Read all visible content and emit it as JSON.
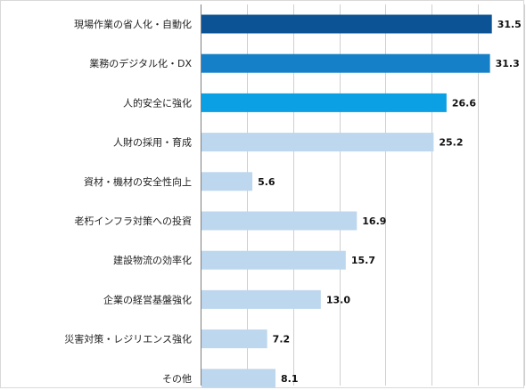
{
  "chart_data": {
    "type": "bar",
    "orientation": "horizontal",
    "title": "",
    "xlabel": "",
    "ylabel": "",
    "xlim": [
      0,
      35
    ],
    "grid": true,
    "legend": "none",
    "categories": [
      "現場作業の省人化・自動化",
      "業務のデジタル化・DX",
      "人的安全に強化",
      "人財の採用・育成",
      "資材・機材の安全性向上",
      "老朽インフラ対策への投資",
      "建設物流の効率化",
      "企業の経営基盤強化",
      "災害対策・レジリエンス強化",
      "その他"
    ],
    "values": [
      31.5,
      31.3,
      26.6,
      25.2,
      5.6,
      16.9,
      15.7,
      13.0,
      7.2,
      8.1
    ],
    "value_labels": [
      "31.5",
      "31.3",
      "26.6",
      "25.2",
      "5.6",
      "16.9",
      "15.7",
      "13.0",
      "7.2",
      "8.1"
    ],
    "bar_colors": [
      "#0b5394",
      "#1580c7",
      "#0aa0e3",
      "#bdd7ee",
      "#bdd7ee",
      "#bdd7ee",
      "#bdd7ee",
      "#bdd7ee",
      "#bdd7ee",
      "#bdd7ee"
    ]
  }
}
